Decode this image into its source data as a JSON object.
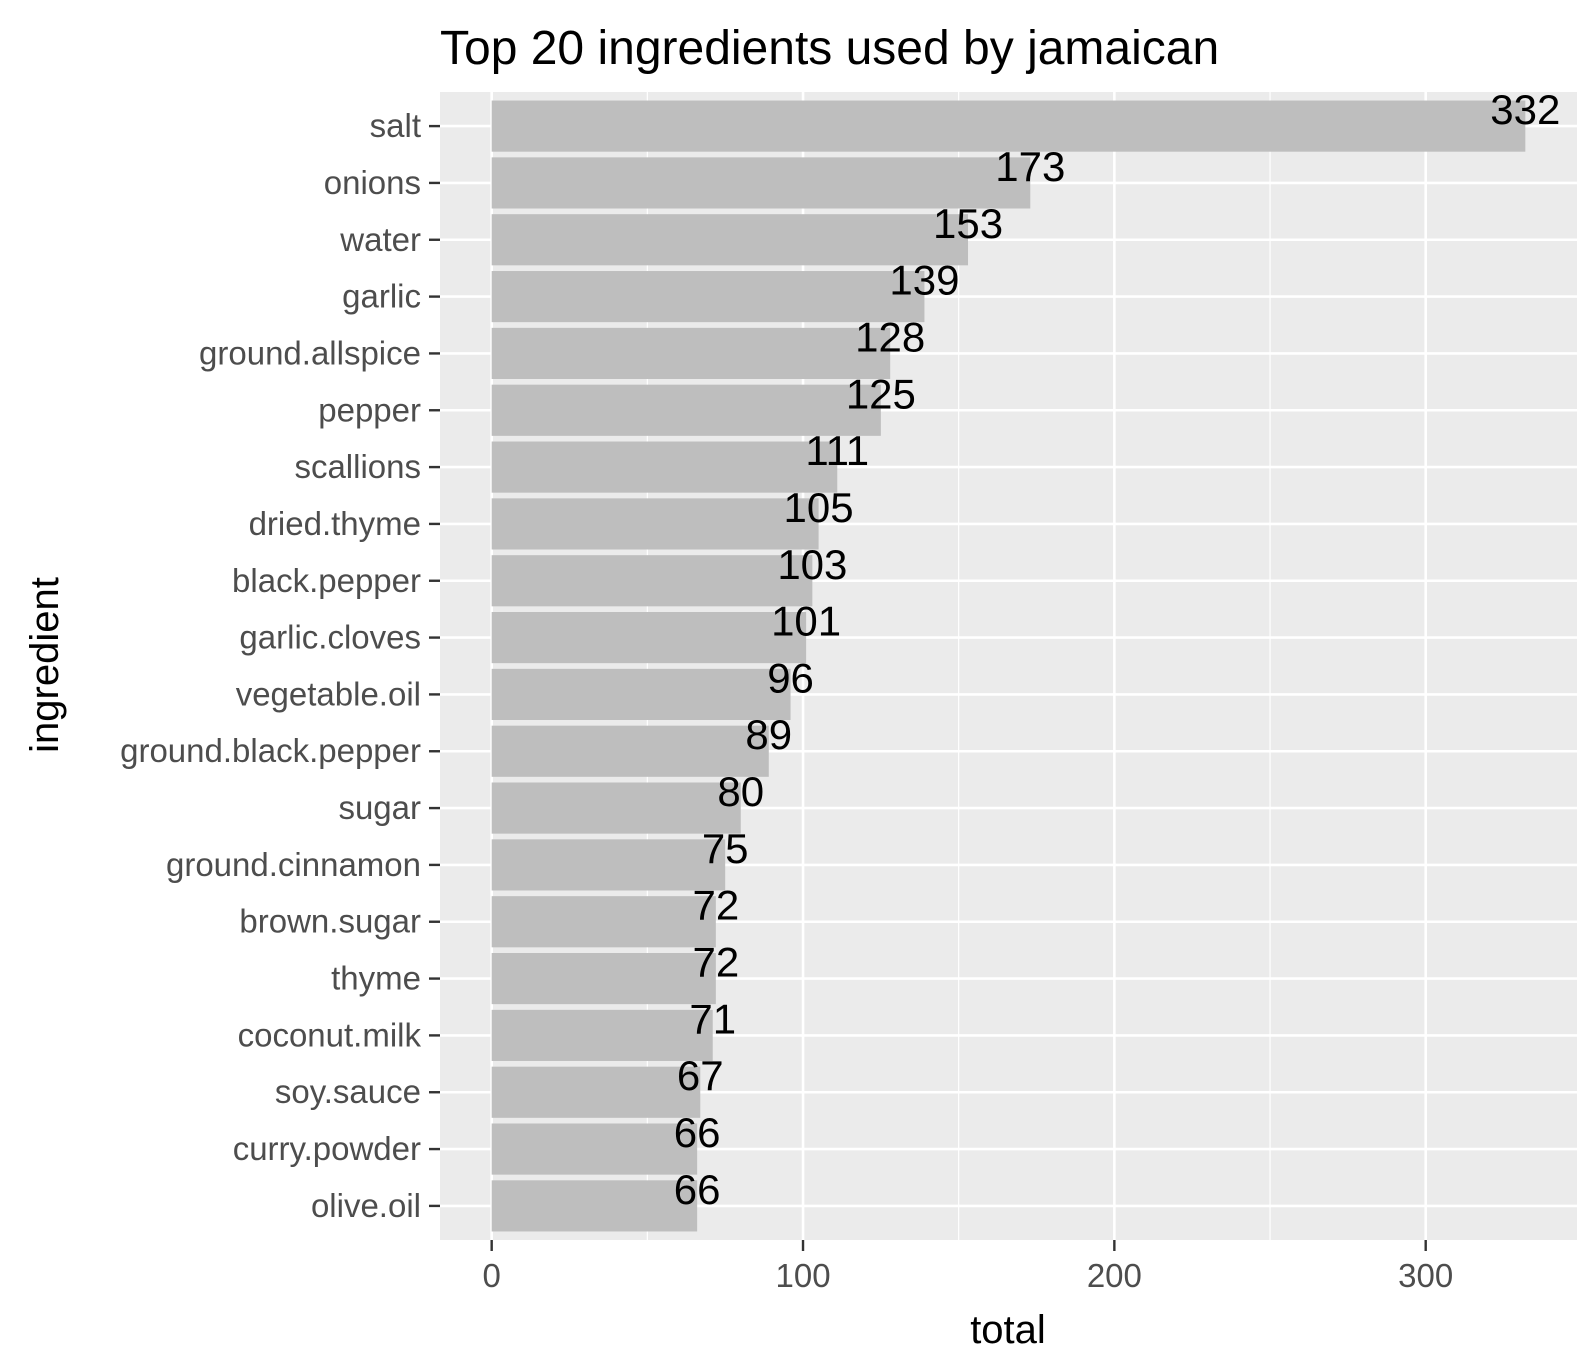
{
  "chart_data": {
    "type": "bar",
    "orientation": "horizontal",
    "title": "Top 20 ingredients used by jamaican",
    "xlabel": "total",
    "ylabel": "ingredient",
    "categories": [
      "salt",
      "onions",
      "water",
      "garlic",
      "ground.allspice",
      "pepper",
      "scallions",
      "dried.thyme",
      "black.pepper",
      "garlic.cloves",
      "vegetable.oil",
      "ground.black.pepper",
      "sugar",
      "ground.cinnamon",
      "brown.sugar",
      "thyme",
      "coconut.milk",
      "soy.sauce",
      "curry.powder",
      "olive.oil"
    ],
    "values": [
      332,
      173,
      153,
      139,
      128,
      125,
      111,
      105,
      103,
      101,
      96,
      89,
      80,
      75,
      72,
      72,
      71,
      67,
      66,
      66
    ],
    "value_labels": [
      "332",
      "173",
      "153",
      "139",
      "128",
      "125",
      "111",
      "105",
      "103",
      "101",
      "96",
      "89",
      "80",
      "75",
      "72",
      "72",
      "71",
      "67",
      "66",
      "66"
    ],
    "xticks": [
      0,
      100,
      200,
      300
    ],
    "xtick_labels": [
      "0",
      "100",
      "200",
      "300"
    ],
    "xlim": [
      -16.6,
      348.6
    ],
    "grid": true,
    "legend": "none",
    "colors": {
      "bar": "#bebebe",
      "panel_background": "#ebebeb",
      "grid": "#ffffff",
      "tick_label": "#4d4d4d",
      "text": "#000000"
    }
  }
}
